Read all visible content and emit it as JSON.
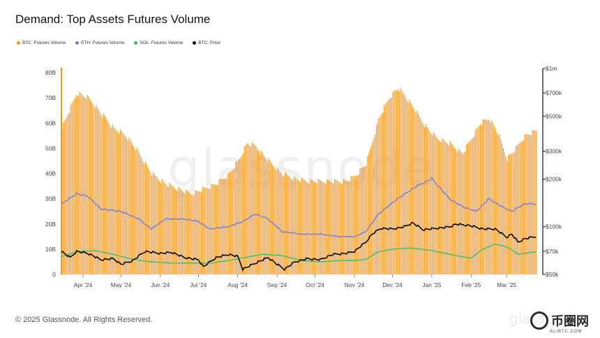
{
  "header": {
    "title": "Demand: Top Assets Futures Volume"
  },
  "footer": {
    "copyright": "© 2025 Glassnode. All Rights Reserved."
  },
  "watermark": {
    "text": "glassnode",
    "small_text": "glassnode"
  },
  "badge": {
    "text": "币圈网",
    "sub": "ALIBTC.COM"
  },
  "chart_data": {
    "type": "bar",
    "title": "Demand: Top Assets Futures Volume",
    "legend_position": "top-left",
    "grid": false,
    "colors": {
      "btc_volume": "#f7931a",
      "eth_volume": "#6f7cdb",
      "sol_volume": "#2fbf71",
      "btc_price": "#000000"
    },
    "x_ticks": [
      "Apr '24",
      "May '24",
      "Jun '24",
      "Jul '24",
      "Aug '24",
      "Sep '24",
      "Oct '24",
      "Nov '24",
      "Dec '24",
      "Jan '25",
      "Feb '25",
      "Mar '25"
    ],
    "y_left": {
      "ticks": [
        "0",
        "10B",
        "20B",
        "30B",
        "40B",
        "50B",
        "60B",
        "70B",
        "80B"
      ],
      "ylim": [
        0,
        80000000000
      ],
      "scale": "linear"
    },
    "y_right": {
      "ticks": [
        "$50k",
        "$70k",
        "$100k",
        "$200k",
        "$300k",
        "$500k",
        "$700k",
        "$1m"
      ],
      "ylim": [
        50000,
        1000000
      ],
      "scale": "log"
    },
    "x_start": "2024-03-15",
    "x_end": "2025-03-24",
    "series": [
      {
        "name": "BTC: Futures Volume",
        "type": "bar",
        "axis": "left",
        "unit": "USD",
        "x": [
          "2024-03-15",
          "2024-03-20",
          "2024-03-27",
          "2024-04-05",
          "2024-04-15",
          "2024-04-25",
          "2024-05-05",
          "2024-05-15",
          "2024-05-25",
          "2024-06-05",
          "2024-06-15",
          "2024-06-25",
          "2024-07-05",
          "2024-07-15",
          "2024-07-25",
          "2024-08-01",
          "2024-08-08",
          "2024-08-15",
          "2024-08-25",
          "2024-09-05",
          "2024-09-15",
          "2024-09-25",
          "2024-10-05",
          "2024-10-15",
          "2024-10-25",
          "2024-11-01",
          "2024-11-10",
          "2024-11-20",
          "2024-11-28",
          "2024-12-05",
          "2024-12-12",
          "2024-12-20",
          "2024-12-28",
          "2025-01-05",
          "2025-01-15",
          "2025-01-25",
          "2025-02-01",
          "2025-02-08",
          "2025-02-15",
          "2025-02-22",
          "2025-03-01",
          "2025-03-08",
          "2025-03-15",
          "2025-03-24"
        ],
        "values": [
          58000000000.0,
          64000000000.0,
          72000000000.0,
          70000000000.0,
          64000000000.0,
          58000000000.0,
          55000000000.0,
          48000000000.0,
          40000000000.0,
          36000000000.0,
          34000000000.0,
          32000000000.0,
          34000000000.0,
          36000000000.0,
          40000000000.0,
          45000000000.0,
          52000000000.0,
          51000000000.0,
          45000000000.0,
          40000000000.0,
          38000000000.0,
          37000000000.0,
          37000000000.0,
          37000000000.0,
          37000000000.0,
          39000000000.0,
          44000000000.0,
          62000000000.0,
          70000000000.0,
          74000000000.0,
          70000000000.0,
          64000000000.0,
          58000000000.0,
          54000000000.0,
          52000000000.0,
          48000000000.0,
          54000000000.0,
          60000000000.0,
          62000000000.0,
          56000000000.0,
          46000000000.0,
          50000000000.0,
          55000000000.0,
          57000000000.0
        ]
      },
      {
        "name": "ETH: Futures Volume",
        "type": "line",
        "axis": "left",
        "unit": "USD",
        "x": [
          "2024-03-15",
          "2024-03-27",
          "2024-04-05",
          "2024-04-15",
          "2024-05-01",
          "2024-05-15",
          "2024-05-25",
          "2024-06-05",
          "2024-06-20",
          "2024-07-01",
          "2024-07-10",
          "2024-07-25",
          "2024-08-05",
          "2024-08-15",
          "2024-08-25",
          "2024-09-05",
          "2024-09-20",
          "2024-10-05",
          "2024-10-20",
          "2024-11-01",
          "2024-11-10",
          "2024-11-20",
          "2024-12-05",
          "2024-12-20",
          "2025-01-01",
          "2025-01-15",
          "2025-01-25",
          "2025-02-05",
          "2025-02-15",
          "2025-02-25",
          "2025-03-05",
          "2025-03-15",
          "2025-03-24"
        ],
        "values": [
          28000000000.0,
          32000000000.0,
          31000000000.0,
          26000000000.0,
          25000000000.0,
          22000000000.0,
          18000000000.0,
          22000000000.0,
          22000000000.0,
          21000000000.0,
          18000000000.0,
          19000000000.0,
          21000000000.0,
          24000000000.0,
          22000000000.0,
          17000000000.0,
          16000000000.0,
          16000000000.0,
          15000000000.0,
          15000000000.0,
          17000000000.0,
          24000000000.0,
          30000000000.0,
          35000000000.0,
          38000000000.0,
          30000000000.0,
          27000000000.0,
          25000000000.0,
          30000000000.0,
          27000000000.0,
          25000000000.0,
          28000000000.0,
          28000000000.0
        ]
      },
      {
        "name": "SOL: Futures Volume",
        "type": "line",
        "axis": "left",
        "unit": "USD",
        "x": [
          "2024-03-15",
          "2024-03-27",
          "2024-04-10",
          "2024-04-25",
          "2024-05-10",
          "2024-05-25",
          "2024-06-10",
          "2024-06-25",
          "2024-07-10",
          "2024-07-25",
          "2024-08-10",
          "2024-08-20",
          "2024-09-05",
          "2024-09-20",
          "2024-10-05",
          "2024-10-20",
          "2024-11-01",
          "2024-11-10",
          "2024-11-20",
          "2024-12-01",
          "2024-12-15",
          "2025-01-01",
          "2025-01-15",
          "2025-01-25",
          "2025-02-01",
          "2025-02-10",
          "2025-02-20",
          "2025-03-01",
          "2025-03-10",
          "2025-03-24"
        ],
        "values": [
          7000000000.0,
          9000000000.0,
          9500000000.0,
          8000000000.0,
          6000000000.0,
          5000000000.0,
          4500000000.0,
          4500000000.0,
          4500000000.0,
          5500000000.0,
          7000000000.0,
          8000000000.0,
          7500000000.0,
          5500000000.0,
          5000000000.0,
          5500000000.0,
          5500000000.0,
          6000000000.0,
          9000000000.0,
          10000000000.0,
          10500000000.0,
          9500000000.0,
          8000000000.0,
          7000000000.0,
          6500000000.0,
          10000000000.0,
          12000000000.0,
          11000000000.0,
          8000000000.0,
          9000000000.0
        ]
      },
      {
        "name": "BTC: Price",
        "type": "line",
        "axis": "right",
        "unit": "USD",
        "x": [
          "2024-03-15",
          "2024-03-22",
          "2024-03-27",
          "2024-04-05",
          "2024-04-15",
          "2024-04-25",
          "2024-05-01",
          "2024-05-10",
          "2024-05-20",
          "2024-06-01",
          "2024-06-10",
          "2024-06-20",
          "2024-07-01",
          "2024-07-05",
          "2024-07-15",
          "2024-07-25",
          "2024-08-01",
          "2024-08-05",
          "2024-08-15",
          "2024-08-25",
          "2024-09-01",
          "2024-09-07",
          "2024-09-15",
          "2024-09-25",
          "2024-10-05",
          "2024-10-15",
          "2024-10-25",
          "2024-11-01",
          "2024-11-10",
          "2024-11-15",
          "2024-11-22",
          "2024-12-01",
          "2024-12-10",
          "2024-12-17",
          "2024-12-25",
          "2025-01-05",
          "2025-01-15",
          "2025-01-20",
          "2025-01-31",
          "2025-02-10",
          "2025-02-20",
          "2025-03-01",
          "2025-03-05",
          "2025-03-10",
          "2025-03-15",
          "2025-03-24"
        ],
        "values": [
          70000,
          64000,
          70000,
          68000,
          62000,
          63000,
          58000,
          61000,
          70000,
          68000,
          69000,
          64000,
          62000,
          56000,
          64000,
          67000,
          65000,
          54000,
          59000,
          64000,
          58000,
          54000,
          60000,
          63000,
          62000,
          67000,
          68000,
          70000,
          80000,
          90000,
          98000,
          97000,
          100000,
          106000,
          96000,
          98000,
          100000,
          104000,
          102000,
          97000,
          97000,
          86000,
          90000,
          80000,
          84000,
          87000
        ]
      }
    ]
  }
}
